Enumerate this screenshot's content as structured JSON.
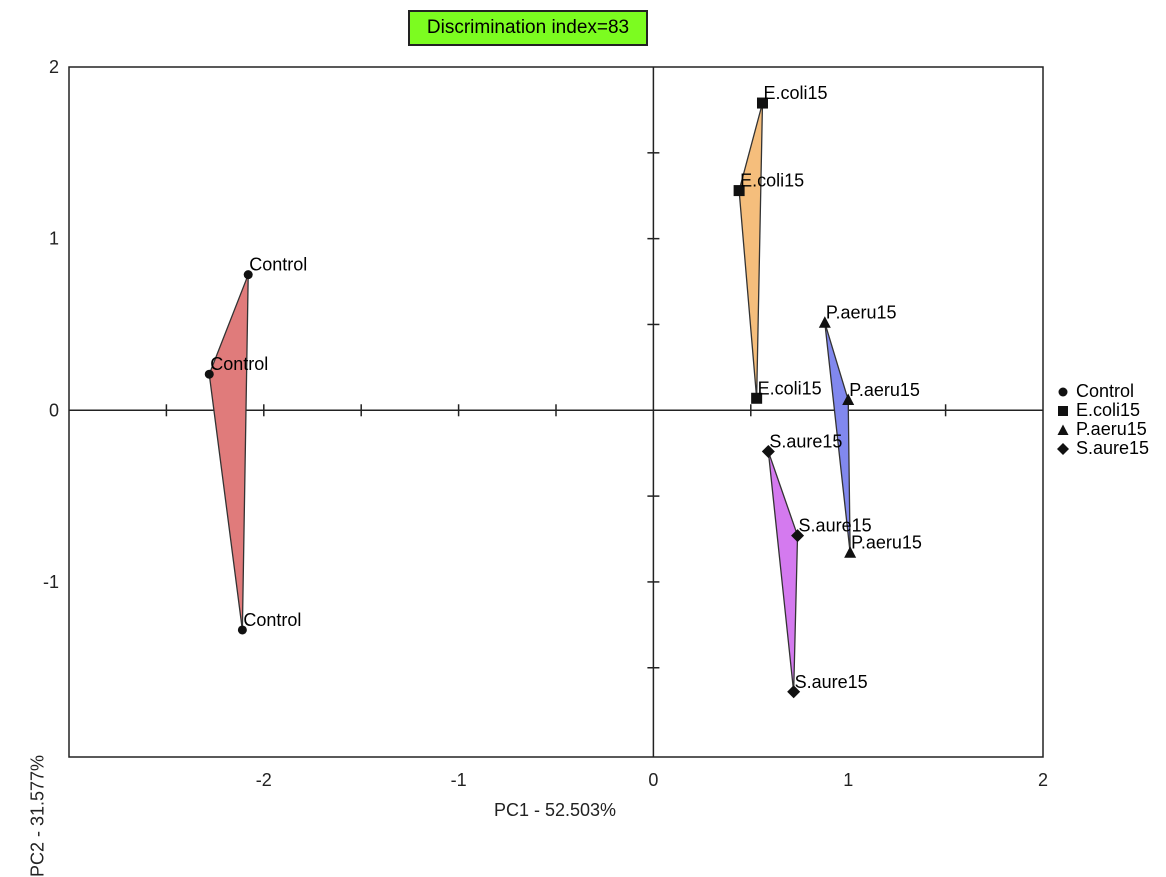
{
  "chart_data": {
    "type": "scatter",
    "title": "Discrimination index=83",
    "xlabel": "PC1 - 52.503%",
    "ylabel": "PC2 - 31.577%",
    "xlim": [
      -3.0,
      2.0
    ],
    "ylim": [
      -2.02,
      2.0
    ],
    "x_ticks": [
      -2,
      -1,
      0,
      1,
      2
    ],
    "y_ticks": [
      -1,
      0,
      1,
      2
    ],
    "x_tick_labels": [
      "-2",
      "-1",
      "0",
      "1",
      "2"
    ],
    "y_tick_labels": [
      "-1",
      "0",
      "1",
      "2"
    ],
    "grid": false,
    "legend_position": "right",
    "series": [
      {
        "name": "Control",
        "marker": "circle",
        "fill": "#e07b7b",
        "points": [
          {
            "x": -2.08,
            "y": 0.79,
            "label": "Control"
          },
          {
            "x": -2.28,
            "y": 0.21,
            "label": "Control"
          },
          {
            "x": -2.11,
            "y": -1.28,
            "label": "Control"
          }
        ]
      },
      {
        "name": "E.coli15",
        "marker": "square",
        "fill": "#f5be7c",
        "points": [
          {
            "x": 0.56,
            "y": 1.79,
            "label": "E.coli15"
          },
          {
            "x": 0.44,
            "y": 1.28,
            "label": "E.coli15"
          },
          {
            "x": 0.53,
            "y": 0.07,
            "label": "E.coli15"
          }
        ]
      },
      {
        "name": "P.aeru15",
        "marker": "triangle",
        "fill": "#8188ee",
        "points": [
          {
            "x": 0.88,
            "y": 0.51,
            "label": "P.aeru15"
          },
          {
            "x": 1.0,
            "y": 0.06,
            "label": "P.aeru15"
          },
          {
            "x": 1.01,
            "y": -0.83,
            "label": "P.aeru15"
          }
        ]
      },
      {
        "name": "S.aure15",
        "marker": "diamond",
        "fill": "#d47aef",
        "points": [
          {
            "x": 0.59,
            "y": -0.24,
            "label": "S.aure15"
          },
          {
            "x": 0.74,
            "y": -0.73,
            "label": "S.aure15"
          },
          {
            "x": 0.72,
            "y": -1.64,
            "label": "S.aure15"
          }
        ]
      }
    ]
  }
}
